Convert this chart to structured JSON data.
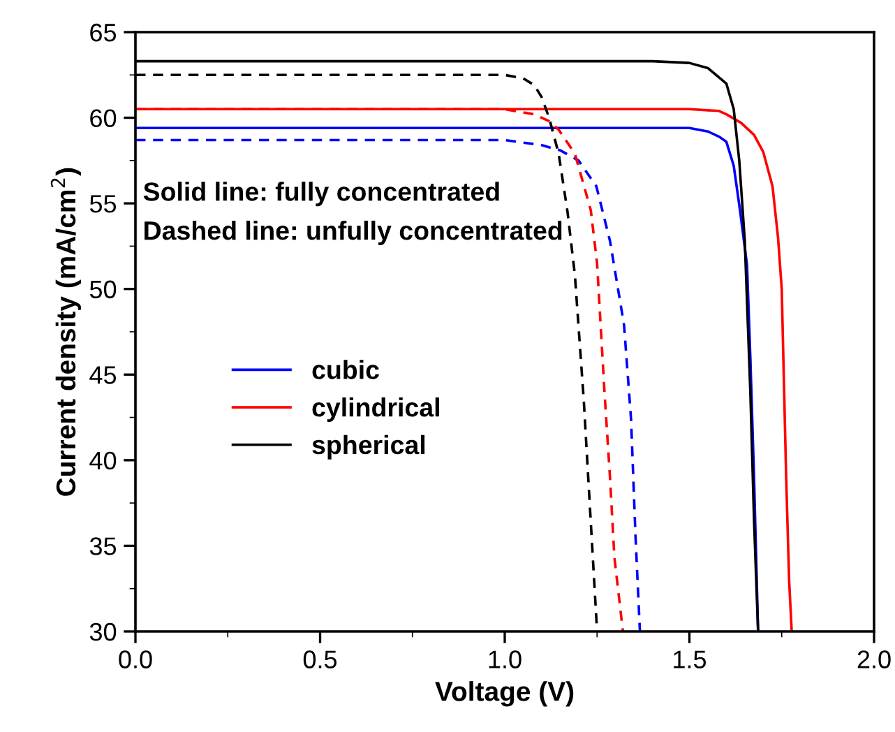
{
  "chart_data": {
    "type": "line",
    "xlabel": "Voltage (V)",
    "ylabel": "Current density (mA/cm$^{2}$)",
    "xlim": [
      0.0,
      2.0
    ],
    "xticks": [
      {
        "value": 0,
        "label": "0.0"
      },
      0.5,
      {
        "value": 1,
        "label": "1.0"
      },
      1.5,
      {
        "value": 2,
        "label": "2.0"
      }
    ],
    "ylim": [
      30,
      65
    ],
    "yticks": [
      30,
      35,
      40,
      45,
      50,
      55,
      60,
      65
    ],
    "grid": false,
    "legend": "left",
    "marker": "none",
    "annotations": [
      "Solid line: fully concentrated",
      "Dashed line: unfully concentrated"
    ],
    "series": [
      {
        "name": "cubic",
        "color": "#0000ff",
        "line_style": "solid",
        "x": [
          0,
          1.5,
          1.55,
          1.58,
          1.6,
          1.62,
          1.637,
          1.656,
          1.665,
          1.675,
          1.686
        ],
        "values": [
          59.4,
          59.4,
          59.2,
          58.9,
          58.6,
          57.2,
          54.6,
          51.4,
          46,
          39,
          30
        ]
      },
      {
        "name": "cylindrical",
        "color": "#ff0000",
        "line_style": "solid",
        "x": [
          0,
          1.5,
          1.58,
          1.6,
          1.64,
          1.675,
          1.7,
          1.725,
          1.74,
          1.75,
          1.762,
          1.77,
          1.777
        ],
        "values": [
          60.5,
          60.5,
          60.4,
          60.2,
          59.7,
          59.0,
          58.0,
          56,
          53,
          50,
          39,
          33,
          30
        ]
      },
      {
        "name": "spherical",
        "color": "#000000",
        "line_style": "solid",
        "x": [
          0,
          1.4,
          1.5,
          1.55,
          1.6,
          1.62,
          1.635,
          1.65,
          1.665,
          1.675,
          1.686
        ],
        "values": [
          63.3,
          63.3,
          63.2,
          62.9,
          62.0,
          60.5,
          57.5,
          52.8,
          44,
          36.5,
          30
        ]
      },
      {
        "color": "#0000ff",
        "line_style": "dashed",
        "x": [
          0,
          1.0,
          1.1,
          1.15,
          1.2,
          1.248,
          1.285,
          1.323,
          1.342,
          1.354,
          1.366
        ],
        "values": [
          58.7,
          58.7,
          58.4,
          58.1,
          57.5,
          56,
          52.8,
          47.9,
          42.4,
          35.6,
          30
        ]
      },
      {
        "color": "#ff0000",
        "line_style": "dashed",
        "x": [
          0,
          1.0,
          1.08,
          1.12,
          1.146,
          1.19,
          1.233,
          1.25,
          1.27,
          1.285,
          1.297,
          1.32
        ],
        "values": [
          60.5,
          60.5,
          60.2,
          59.8,
          59.3,
          57.9,
          54.6,
          51.5,
          44,
          39,
          34.3,
          30
        ]
      },
      {
        "color": "#000000",
        "line_style": "dashed",
        "x": [
          0,
          1.0,
          1.05,
          1.08,
          1.1,
          1.12,
          1.146,
          1.17,
          1.19,
          1.214,
          1.23,
          1.25
        ],
        "values": [
          62.5,
          62.5,
          62.3,
          61.9,
          61.2,
          60.0,
          57.9,
          54.5,
          50.8,
          43.5,
          37.5,
          30
        ]
      }
    ]
  }
}
